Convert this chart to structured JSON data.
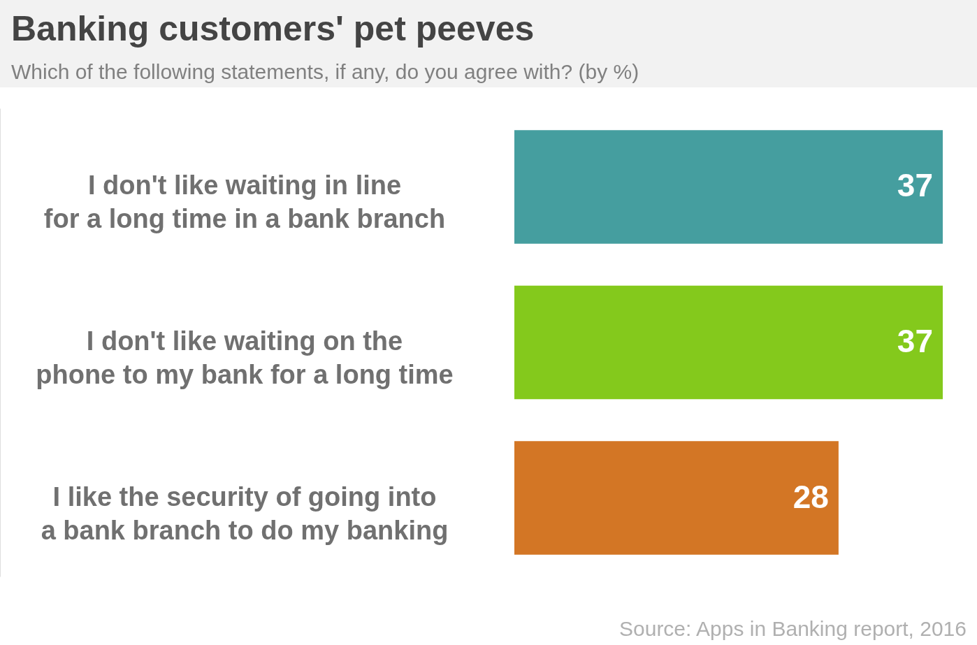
{
  "chart_data": {
    "type": "bar",
    "orientation": "horizontal",
    "title": "Banking customers' pet peeves",
    "subtitle": "Which of the following statements, if any, do you agree with? (by %)",
    "categories": [
      "I don't like waiting in line for a long time in a bank branch",
      "I don't like waiting on the phone to my bank for a long time",
      "I like the security of going into a bank branch to do my banking"
    ],
    "values": [
      37,
      37,
      28
    ],
    "colors": [
      "#459e9f",
      "#84c91c",
      "#d37625"
    ],
    "data_labels": true,
    "annotations": [
      "Source: Apps in Banking report, 2016"
    ]
  }
}
